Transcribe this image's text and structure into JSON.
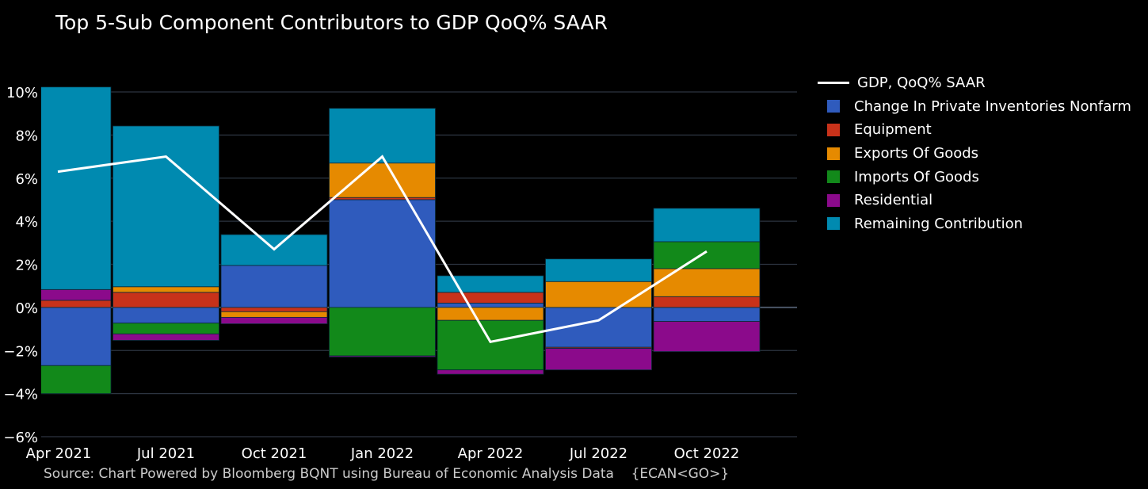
{
  "chart_data": {
    "type": "bar",
    "stacked": true,
    "title": "Top 5-Sub Component Contributors to GDP QoQ% SAAR",
    "source": "Source: Chart Powered by Bloomberg BQNT using Bureau of Economic Analysis Data    {ECAN<GO>}",
    "categories": [
      "Apr 2021",
      "Jul 2021",
      "Oct 2021",
      "Jan 2022",
      "Apr 2022",
      "Jul 2022",
      "Oct 2022"
    ],
    "ylim": [
      -6,
      10
    ],
    "yticks": [
      10,
      8,
      6,
      4,
      2,
      0,
      -2,
      -4,
      -6
    ],
    "ytick_labels": [
      "10%",
      "8%",
      "6%",
      "4%",
      "2%",
      "0%",
      "−2%",
      "−4%",
      "−6%"
    ],
    "legend_position": "right",
    "line": {
      "name": "GDP, QoQ% SAAR",
      "color": "#ffffff",
      "values": [
        6.3,
        7.0,
        2.7,
        7.0,
        -1.6,
        -0.6,
        2.6
      ]
    },
    "series": [
      {
        "name": "Change In Private Inventories Nonfarm",
        "color": "#2f5bbd",
        "values": [
          -2.7,
          -0.73,
          1.95,
          5.0,
          0.2,
          -1.85,
          -0.65
        ]
      },
      {
        "name": "Equipment",
        "color": "#c8321a",
        "values": [
          0.33,
          0.7,
          -0.2,
          0.1,
          0.5,
          -0.05,
          0.5
        ]
      },
      {
        "name": "Exports Of Goods",
        "color": "#e68a00",
        "values": [
          0.0,
          0.26,
          -0.26,
          1.6,
          -0.6,
          1.2,
          1.3
        ]
      },
      {
        "name": "Imports Of Goods",
        "color": "#12891a",
        "values": [
          -1.3,
          -0.5,
          0.0,
          -2.25,
          -2.3,
          0.0,
          1.25
        ]
      },
      {
        "name": "Residential",
        "color": "#8b0a8b",
        "values": [
          0.5,
          -0.3,
          -0.3,
          -0.05,
          -0.2,
          -1.0,
          -1.4
        ]
      },
      {
        "name": "Remaining Contribution",
        "color": "#008ab0",
        "values": [
          9.4,
          7.46,
          1.43,
          2.54,
          0.77,
          1.05,
          1.55
        ]
      }
    ]
  }
}
